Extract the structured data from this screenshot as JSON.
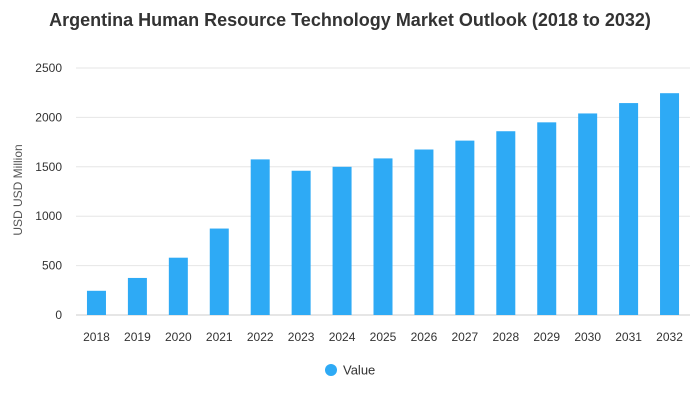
{
  "chart_data": {
    "type": "bar",
    "title": "Argentina Human Resource Technology Market Outlook (2018 to 2032)",
    "ylabel": "USD USD Million",
    "xlabel": "",
    "categories": [
      "2018",
      "2019",
      "2020",
      "2021",
      "2022",
      "2023",
      "2024",
      "2025",
      "2026",
      "2027",
      "2028",
      "2029",
      "2030",
      "2031",
      "2032"
    ],
    "series": [
      {
        "name": "Value",
        "values": [
          245,
          375,
          580,
          875,
          1575,
          1460,
          1500,
          1585,
          1675,
          1765,
          1860,
          1950,
          2040,
          2145,
          2245
        ]
      }
    ],
    "ylim": [
      0,
      2500
    ],
    "yticks": [
      "0",
      "500",
      "1000",
      "1500",
      "2000",
      "2500"
    ],
    "grid": true,
    "legend_position": "bottom",
    "colors": {
      "bar": "#2eaaf5",
      "grid": "#e6e6e6",
      "axis": "#cccccc"
    }
  }
}
